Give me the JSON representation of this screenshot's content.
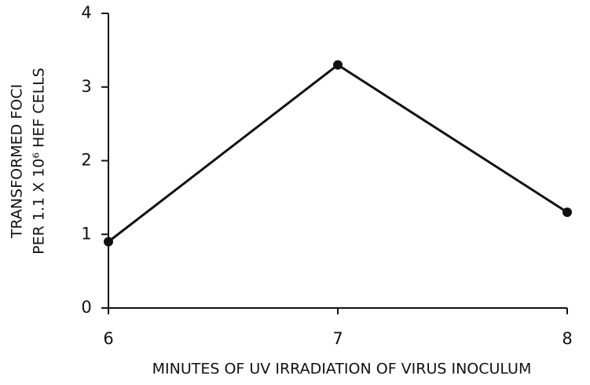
{
  "chart_data": {
    "type": "line",
    "x": [
      6,
      7,
      8
    ],
    "series": [
      {
        "color": "#111111",
        "values": [
          0.9,
          3.3,
          1.3
        ]
      }
    ],
    "xlim": [
      6,
      8
    ],
    "xticks": [
      6,
      7,
      8
    ],
    "ylim": [
      0,
      4
    ],
    "yticks": [
      0,
      1,
      2,
      3,
      4
    ],
    "xlabel": "MINUTES OF UV IRRADIATION OF VIRUS INOCULUM",
    "ylabel": [
      "TRANSFORMED FOCI",
      "PER 1.1 X 10⁶ HEF CELLS"
    ],
    "grid": false
  }
}
